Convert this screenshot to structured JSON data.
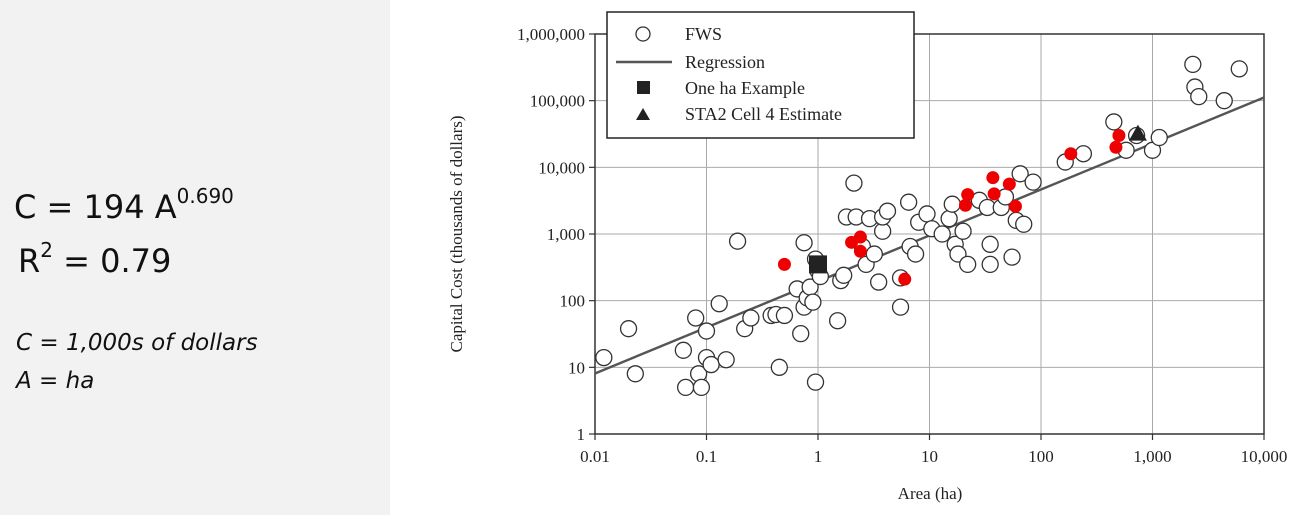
{
  "equation": {
    "c_prefix": "C = 194 A",
    "c_exponent": "0.690",
    "r_prefix": "R",
    "r_exponent": "2",
    "r_suffix": " = 0.79"
  },
  "notes": {
    "c_units": "C = 1,000s of dollars",
    "a_units": "A = ha"
  },
  "colors": {
    "panel_bg": "#f2f2f2",
    "hollow_points": "#ffffff",
    "red_points": "#ee0000",
    "regression": "#555555",
    "grid": "#aaaaaa"
  },
  "chart_data": {
    "type": "scatter",
    "xlabel": "Area (ha)",
    "ylabel": "Capital Cost (thousands of dollars)",
    "x_scale": "log",
    "y_scale": "log",
    "xlim": [
      0.01,
      10000
    ],
    "ylim": [
      1,
      1000000
    ],
    "x_ticks": [
      0.01,
      0.1,
      1,
      10,
      100,
      1000,
      10000
    ],
    "x_tick_labels": [
      "0.01",
      "0.1",
      "1",
      "10",
      "100",
      "1,000",
      "10,000"
    ],
    "y_ticks": [
      1,
      10,
      100,
      1000,
      10000,
      100000,
      1000000
    ],
    "y_tick_labels": [
      "1",
      "10",
      "100",
      "1,000",
      "10,000",
      "100,000",
      "1,000,000"
    ],
    "grid": true,
    "legend_position": "top-left",
    "legend": [
      "FWS",
      "Regression",
      "One ha Example",
      "STA2 Cell 4 Estimate"
    ],
    "series": [
      {
        "name": "FWS",
        "marker": "hollow-circle",
        "points": [
          [
            0.012,
            14
          ],
          [
            0.02,
            38
          ],
          [
            0.023,
            8
          ],
          [
            0.062,
            18
          ],
          [
            0.065,
            5
          ],
          [
            0.08,
            55
          ],
          [
            0.085,
            8
          ],
          [
            0.09,
            5
          ],
          [
            0.1,
            35
          ],
          [
            0.1,
            14
          ],
          [
            0.11,
            11
          ],
          [
            0.13,
            90
          ],
          [
            0.15,
            13
          ],
          [
            0.19,
            780
          ],
          [
            0.22,
            38
          ],
          [
            0.25,
            55
          ],
          [
            0.38,
            60
          ],
          [
            0.42,
            62
          ],
          [
            0.45,
            10
          ],
          [
            0.5,
            60
          ],
          [
            0.65,
            150
          ],
          [
            0.7,
            32
          ],
          [
            0.75,
            80
          ],
          [
            0.75,
            740
          ],
          [
            0.8,
            110
          ],
          [
            0.85,
            160
          ],
          [
            0.9,
            95
          ],
          [
            0.95,
            6
          ],
          [
            0.95,
            420
          ],
          [
            1.0,
            280
          ],
          [
            1.05,
            230
          ],
          [
            1.5,
            50
          ],
          [
            1.6,
            200
          ],
          [
            1.7,
            240
          ],
          [
            1.8,
            1800
          ],
          [
            2.1,
            5800
          ],
          [
            2.2,
            1800
          ],
          [
            2.5,
            650
          ],
          [
            2.7,
            350
          ],
          [
            2.9,
            1700
          ],
          [
            3.2,
            500
          ],
          [
            3.5,
            190
          ],
          [
            3.8,
            1100
          ],
          [
            3.8,
            1800
          ],
          [
            4.2,
            2200
          ],
          [
            5.5,
            220
          ],
          [
            5.5,
            80
          ],
          [
            6.5,
            3000
          ],
          [
            6.7,
            650
          ],
          [
            7.5,
            500
          ],
          [
            8.0,
            1500
          ],
          [
            9.5,
            2000
          ],
          [
            10.5,
            1200
          ],
          [
            13,
            1000
          ],
          [
            15,
            1700
          ],
          [
            16,
            2800
          ],
          [
            17,
            700
          ],
          [
            18,
            500
          ],
          [
            20,
            1100
          ],
          [
            22,
            350
          ],
          [
            28,
            3200
          ],
          [
            33,
            2500
          ],
          [
            35,
            700
          ],
          [
            35,
            350
          ],
          [
            44,
            2500
          ],
          [
            48,
            3600
          ],
          [
            55,
            450
          ],
          [
            60,
            1600
          ],
          [
            65,
            8000
          ],
          [
            70,
            1400
          ],
          [
            85,
            6000
          ],
          [
            165,
            12000
          ],
          [
            240,
            16000
          ],
          [
            450,
            48000
          ],
          [
            580,
            18000
          ],
          [
            720,
            30000
          ],
          [
            1000,
            18000
          ],
          [
            1150,
            28000
          ],
          [
            2300,
            350000
          ],
          [
            2400,
            160000
          ],
          [
            2600,
            115000
          ],
          [
            4400,
            100000
          ],
          [
            6000,
            300000
          ]
        ]
      },
      {
        "name": "Red points",
        "marker": "filled-circle",
        "points": [
          [
            0.5,
            350
          ],
          [
            2.0,
            750
          ],
          [
            2.4,
            900
          ],
          [
            2.4,
            550
          ],
          [
            6.0,
            210
          ],
          [
            21,
            2700
          ],
          [
            22,
            3900
          ],
          [
            37,
            7000
          ],
          [
            38,
            4000
          ],
          [
            52,
            5600
          ],
          [
            59,
            2600
          ],
          [
            185,
            16000
          ],
          [
            470,
            20000
          ],
          [
            500,
            30000
          ]
        ]
      },
      {
        "name": "One ha Example",
        "marker": "filled-square",
        "points": [
          [
            1.0,
            350
          ]
        ]
      },
      {
        "name": "STA2 Cell 4 Estimate",
        "marker": "filled-triangle",
        "points": [
          [
            740,
            32000
          ]
        ]
      }
    ],
    "regression": {
      "name": "Regression",
      "coefficient": 194,
      "exponent": 0.69,
      "x_range": [
        0.01,
        10000
      ]
    }
  }
}
